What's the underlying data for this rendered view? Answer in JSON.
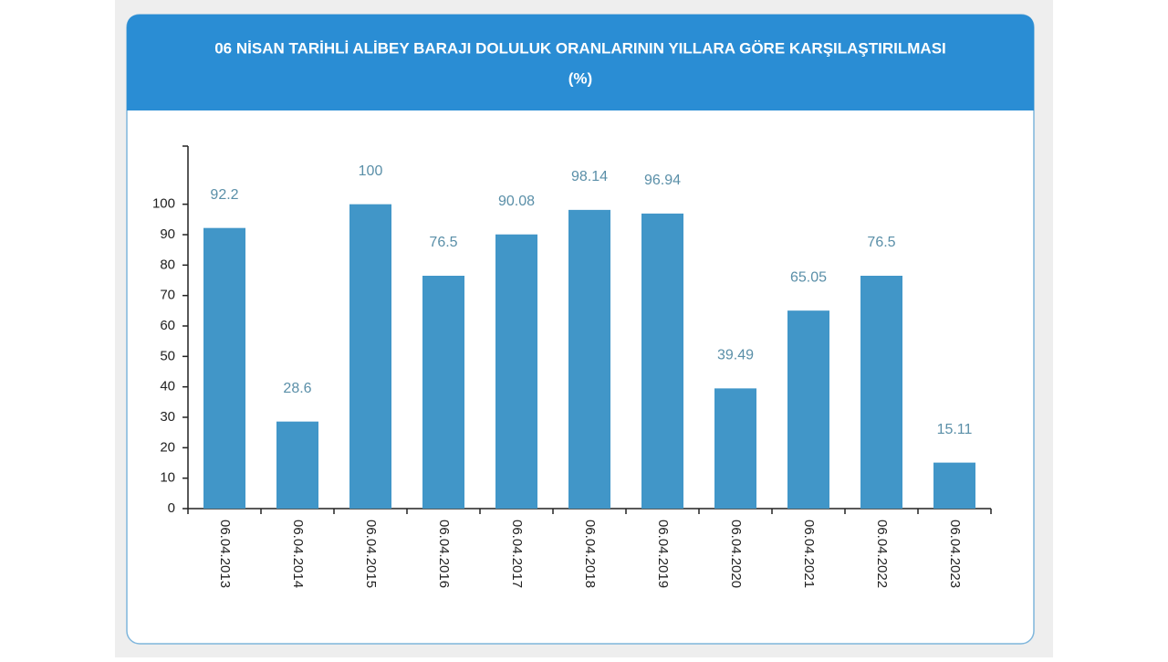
{
  "chart_data": {
    "type": "bar",
    "title": "06 NİSAN TARİHLİ ALİBEY BARAJI DOLULUK ORANLARININ YILLARA GÖRE KARŞILAŞTIRILMASI",
    "subtitle": "(%)",
    "categories": [
      "06.04.2013",
      "06.04.2014",
      "06.04.2015",
      "06.04.2016",
      "06.04.2017",
      "06.04.2018",
      "06.04.2019",
      "06.04.2020",
      "06.04.2021",
      "06.04.2022",
      "06.04.2023"
    ],
    "values": [
      92.2,
      28.6,
      100,
      76.5,
      90.08,
      98.14,
      96.94,
      39.49,
      65.05,
      76.5,
      15.11
    ],
    "color": "#4196c8",
    "ylim": [
      0,
      120
    ],
    "yticks": [
      0,
      10,
      20,
      30,
      40,
      50,
      60,
      70,
      80,
      90,
      100
    ]
  }
}
